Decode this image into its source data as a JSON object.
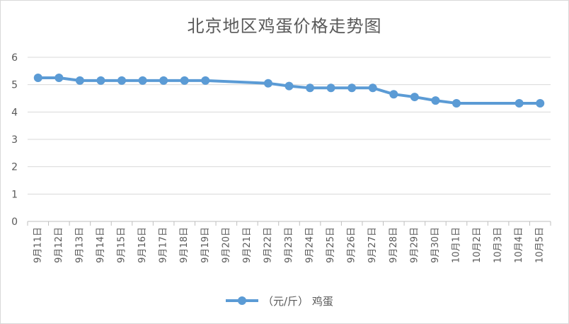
{
  "chart_data": {
    "type": "line",
    "title": "北京地区鸡蛋价格走势图",
    "xlabel": "",
    "ylabel": "",
    "ylim": [
      0,
      6
    ],
    "yticks": [
      "0",
      "1",
      "2",
      "3",
      "4",
      "5",
      "6"
    ],
    "grid": true,
    "legend_position": "bottom",
    "categories": [
      "9月11日",
      "9月12日",
      "9月13日",
      "9月14日",
      "9月15日",
      "9月16日",
      "9月17日",
      "9月18日",
      "9月19日",
      "9月20日",
      "9月21日",
      "9月22日",
      "9月23日",
      "9月24日",
      "9月25日",
      "9月26日",
      "9月27日",
      "9月28日",
      "9月29日",
      "9月30日",
      "10月1日",
      "10月2日",
      "10月3日",
      "10月4日",
      "10月5日"
    ],
    "series": [
      {
        "name": "（元/斤） 鸡蛋",
        "color": "#5b9bd5",
        "values": [
          5.25,
          5.25,
          5.15,
          5.15,
          5.15,
          5.15,
          5.15,
          5.15,
          5.15,
          null,
          null,
          5.05,
          4.95,
          4.88,
          4.88,
          4.88,
          4.88,
          4.65,
          4.55,
          4.42,
          4.32,
          null,
          null,
          4.32,
          4.32
        ]
      }
    ]
  }
}
